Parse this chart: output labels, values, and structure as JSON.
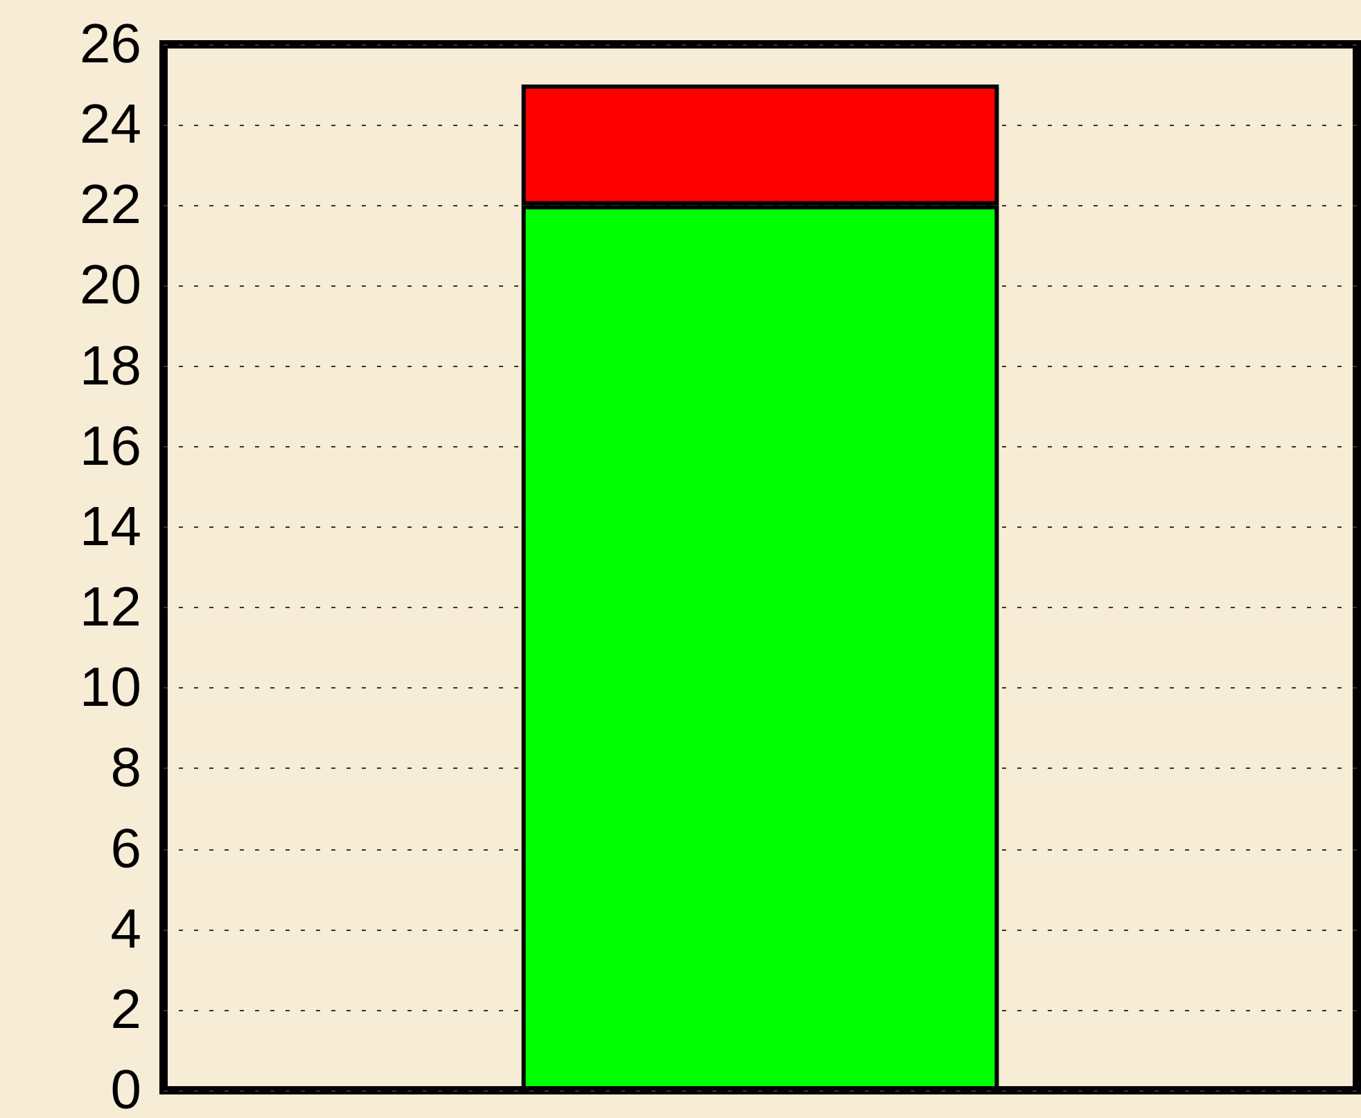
{
  "chart_data": {
    "type": "bar",
    "stacked": true,
    "categories": [
      null
    ],
    "series": [
      {
        "color": "#00ff00",
        "values": [
          22
        ]
      },
      {
        "color": "#ff0000",
        "values": [
          3
        ]
      }
    ],
    "ylim": [
      0,
      26
    ],
    "yticks": [
      0,
      2,
      4,
      6,
      8,
      10,
      12,
      14,
      16,
      18,
      20,
      22,
      24,
      26
    ],
    "grid": "y",
    "tick_labels": "y"
  }
}
